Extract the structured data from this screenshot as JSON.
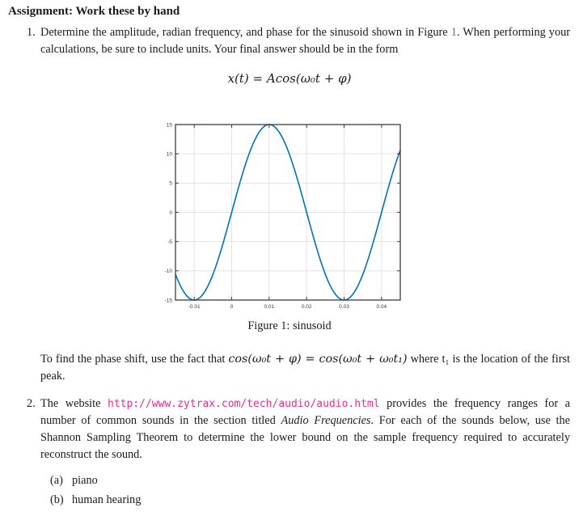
{
  "heading": "Assignment: Work these by hand",
  "item1": {
    "number": "1.",
    "text_before_ref": "Determine the amplitude, radian frequency, and phase for the sinusoid shown in Figure ",
    "figure_ref": "1",
    "text_after_ref": ". When performing your calculations, be sure to include units. Your final answer should be in the form",
    "equation": "x(t) = Acos(ω₀t + φ)"
  },
  "figure": {
    "caption": "Figure 1: sinusoid"
  },
  "phase_note": {
    "text_before_math": "To find the phase shift, use the fact that ",
    "math": "cos(ω₀t + φ) = cos(ω₀t + ω₀t₁)",
    "text_after_math": " where t₁ is the location of the first peak."
  },
  "item2": {
    "number": "2.",
    "text_before_url": "The website ",
    "url": "http://www.zytrax.com/tech/audio/audio.html",
    "text_after_url": " provides the frequency ranges for a number of common sounds in the section titled ",
    "italic_title": "Audio Frequencies",
    "text_after_italic": ". For each of the sounds below, use the Shannon Sampling Theorem to determine the lower bound on the sample frequency required to accurately reconstruct the sound.",
    "sublist": [
      {
        "label": "(a)",
        "text": "piano"
      },
      {
        "label": "(b)",
        "text": "human hearing"
      }
    ]
  },
  "chart_data": {
    "type": "line",
    "title": "",
    "xlabel": "",
    "ylabel": "",
    "xlim": [
      -0.015,
      0.045
    ],
    "ylim": [
      -15,
      15
    ],
    "x_ticks": [
      -0.01,
      0,
      0.01,
      0.02,
      0.03,
      0.04
    ],
    "x_tick_labels": [
      "-0.01",
      "0",
      "0.01",
      "0.02",
      "0.03",
      "0.04"
    ],
    "y_ticks": [
      -15,
      -10,
      -5,
      0,
      5,
      10,
      15
    ],
    "y_tick_labels": [
      "-15",
      "-10",
      "-5",
      "0",
      "5",
      "10",
      "15"
    ],
    "grid": true,
    "legend": "none",
    "series": [
      {
        "name": "sinusoid",
        "model": "cosine",
        "amplitude": 15,
        "period": 0.04,
        "peak_time": 0.01,
        "key_points": [
          {
            "t": -0.01,
            "y": -15
          },
          {
            "t": 0.0,
            "y": 0
          },
          {
            "t": 0.01,
            "y": 15
          },
          {
            "t": 0.02,
            "y": 0
          },
          {
            "t": 0.03,
            "y": -15
          },
          {
            "t": 0.04,
            "y": 0
          }
        ]
      }
    ]
  },
  "colors": {
    "curve": "#0072BD",
    "grid": "#e2e2e2",
    "axis_box": "#3c3c3c",
    "tick_label": "#3c3c3c",
    "figure_link": "#2f7ca6",
    "url_link": "#e5308d",
    "text": "#1a1a1a"
  }
}
